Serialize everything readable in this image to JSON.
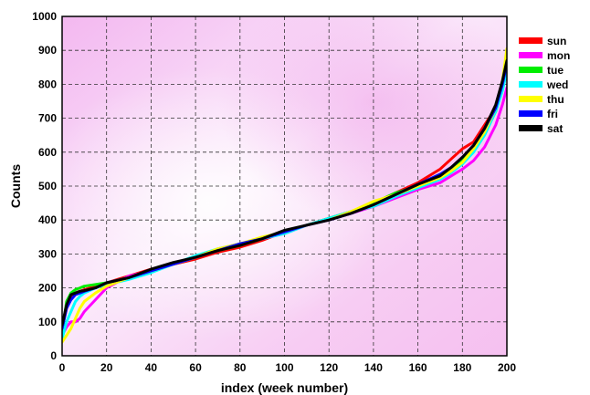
{
  "chart_data": {
    "type": "line",
    "title": "",
    "xlabel": "index (week number)",
    "ylabel": "Counts",
    "xlim": [
      0,
      200
    ],
    "ylim": [
      0,
      1000
    ],
    "x_ticks": [
      "0",
      "20",
      "40",
      "60",
      "80",
      "100",
      "120",
      "140",
      "160",
      "180",
      "200"
    ],
    "y_ticks": [
      "0",
      "100",
      "200",
      "300",
      "400",
      "500",
      "600",
      "700",
      "800",
      "900",
      "1000"
    ],
    "grid": true,
    "legend_position": "right",
    "x": [
      0,
      2,
      4,
      6,
      8,
      10,
      15,
      20,
      30,
      40,
      50,
      60,
      70,
      80,
      90,
      100,
      110,
      120,
      130,
      140,
      150,
      160,
      170,
      175,
      180,
      185,
      190,
      195,
      198,
      200
    ],
    "series": [
      {
        "name": "sun",
        "color": "#ff0000",
        "values": [
          80,
          140,
          170,
          185,
          190,
          195,
          205,
          215,
          235,
          255,
          270,
          285,
          305,
          320,
          340,
          365,
          385,
          405,
          425,
          450,
          480,
          510,
          550,
          580,
          610,
          630,
          680,
          730,
          790,
          830
        ]
      },
      {
        "name": "mon",
        "color": "#ff00ff",
        "values": [
          60,
          85,
          100,
          100,
          110,
          130,
          165,
          200,
          235,
          250,
          270,
          290,
          315,
          330,
          345,
          360,
          385,
          400,
          420,
          440,
          465,
          490,
          510,
          530,
          550,
          575,
          615,
          680,
          740,
          790
        ]
      },
      {
        "name": "tue",
        "color": "#00ee00",
        "values": [
          70,
          160,
          185,
          195,
          200,
          205,
          210,
          215,
          230,
          250,
          270,
          290,
          310,
          325,
          345,
          365,
          385,
          405,
          425,
          450,
          480,
          500,
          525,
          545,
          575,
          610,
          660,
          720,
          790,
          850
        ]
      },
      {
        "name": "wed",
        "color": "#00ffff",
        "values": [
          50,
          100,
          130,
          160,
          175,
          185,
          200,
          210,
          225,
          245,
          270,
          295,
          315,
          330,
          345,
          360,
          385,
          405,
          425,
          440,
          470,
          495,
          520,
          540,
          565,
          600,
          650,
          720,
          780,
          840
        ]
      },
      {
        "name": "thu",
        "color": "#ffff00",
        "values": [
          40,
          60,
          80,
          110,
          140,
          160,
          185,
          205,
          230,
          250,
          270,
          290,
          315,
          330,
          350,
          365,
          385,
          400,
          425,
          455,
          475,
          500,
          525,
          545,
          570,
          610,
          660,
          730,
          810,
          905
        ]
      },
      {
        "name": "fri",
        "color": "#0000ff",
        "values": [
          80,
          140,
          165,
          180,
          185,
          190,
          200,
          215,
          230,
          250,
          270,
          290,
          310,
          330,
          345,
          365,
          385,
          400,
          420,
          445,
          475,
          505,
          535,
          555,
          585,
          620,
          670,
          730,
          800,
          860
        ]
      },
      {
        "name": "sat",
        "color": "#000000",
        "values": [
          90,
          150,
          180,
          185,
          190,
          192,
          200,
          215,
          230,
          255,
          275,
          290,
          310,
          325,
          345,
          370,
          385,
          400,
          420,
          445,
          475,
          505,
          530,
          555,
          585,
          620,
          670,
          740,
          810,
          870
        ]
      }
    ]
  }
}
